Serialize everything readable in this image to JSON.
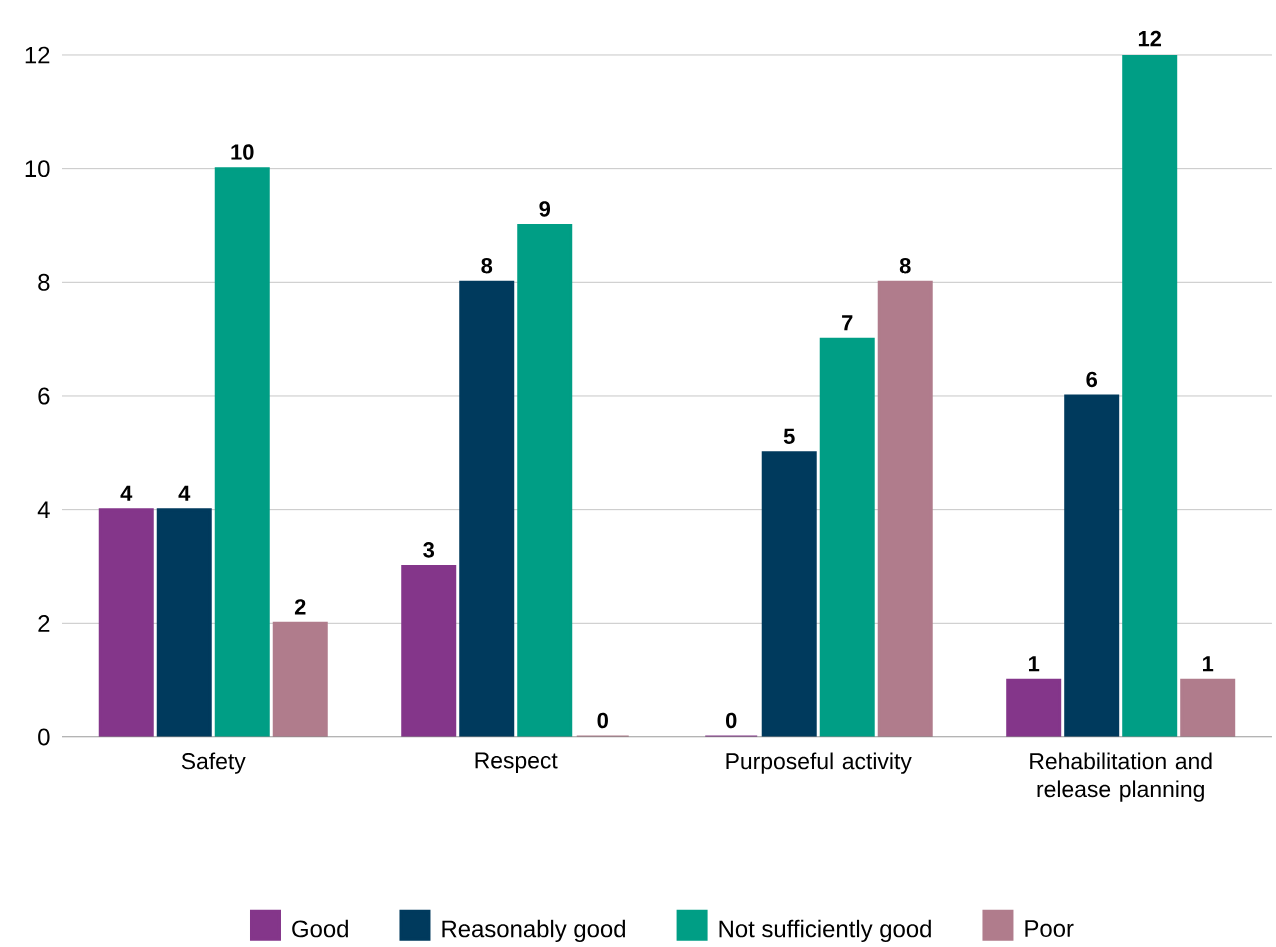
{
  "chart_data": {
    "type": "bar",
    "categories": [
      "Safety",
      "Respect",
      "Purposeful activity",
      "Rehabilitation and release planning"
    ],
    "series": [
      {
        "name": "Good",
        "color": "#84368a",
        "values": [
          4,
          3,
          0,
          1
        ]
      },
      {
        "name": "Reasonably good",
        "color": "#003a5d",
        "values": [
          4,
          8,
          5,
          6
        ]
      },
      {
        "name": "Not sufficiently good",
        "color": "#009e85",
        "values": [
          10,
          9,
          7,
          12
        ]
      },
      {
        "name": "Poor",
        "color": "#b07c8c",
        "values": [
          2,
          0,
          8,
          1
        ]
      }
    ],
    "ylim": [
      0,
      12
    ],
    "yticks": [
      0,
      2,
      4,
      6,
      8,
      10,
      12
    ],
    "grid": "y",
    "legend": "bottom",
    "data_labels": true
  }
}
